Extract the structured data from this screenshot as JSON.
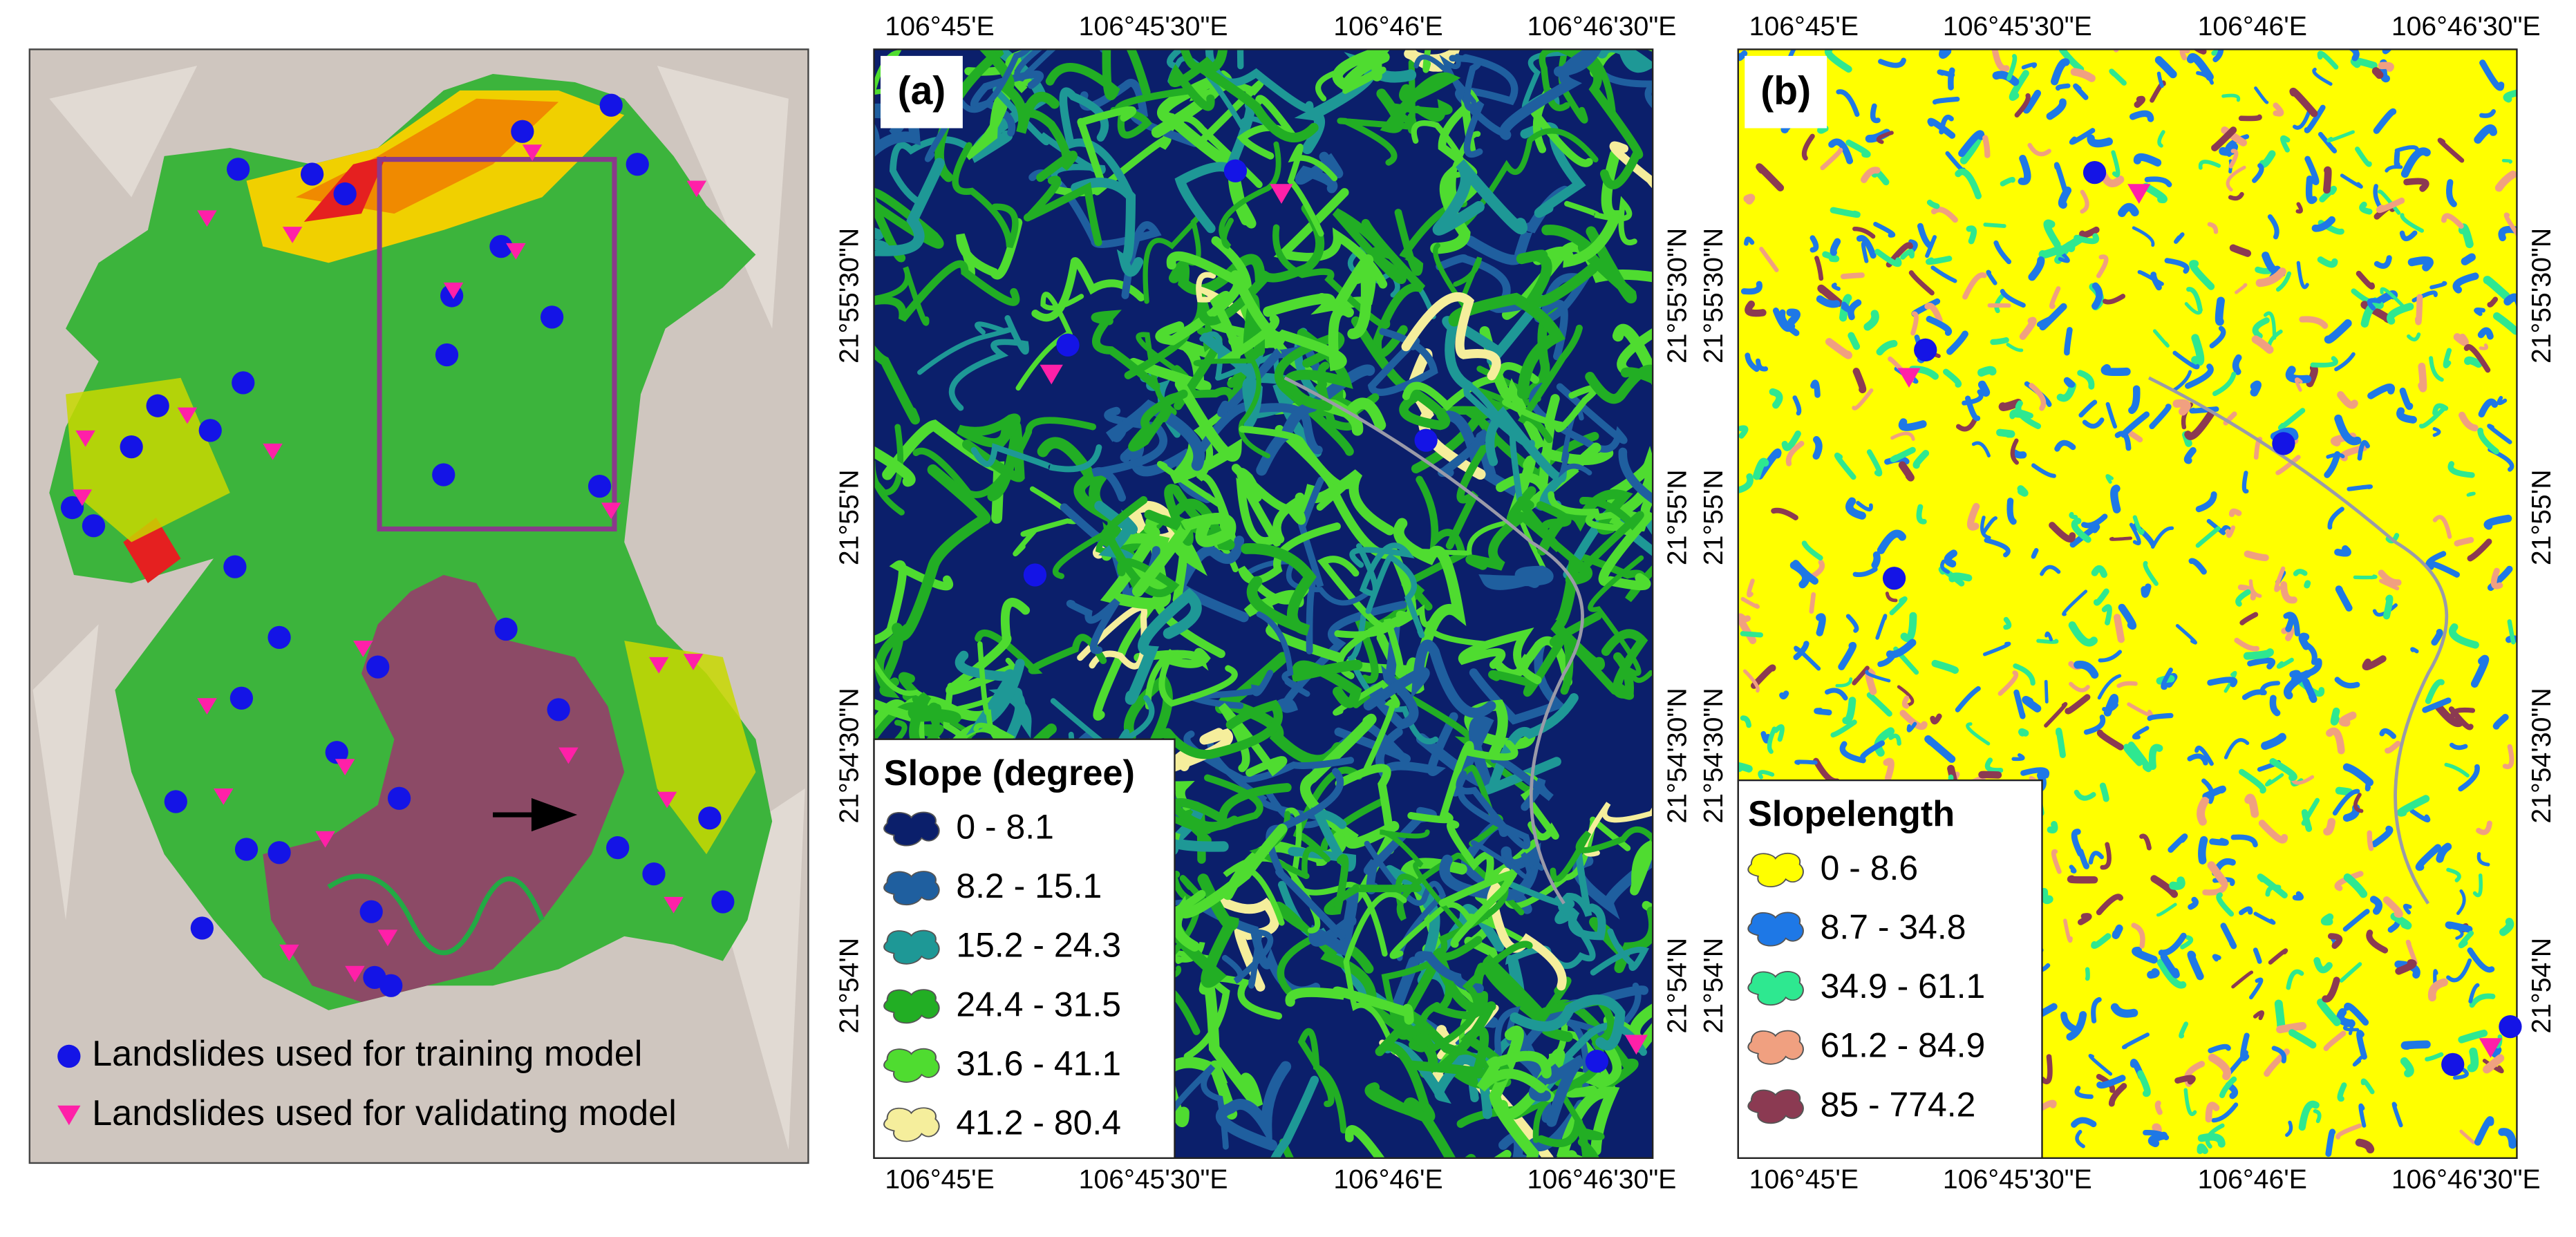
{
  "overview": {
    "legend": [
      "Landslides used for training model",
      "Landslides used for validating model"
    ]
  },
  "longitude_labels": [
    "106°45'E",
    "106°45'30\"E",
    "106°46'E",
    "106°46'30\"E"
  ],
  "latitude_labels": [
    "21°55'30\"N",
    "21°55'N",
    "21°54'30\"N",
    "21°54'N"
  ],
  "panels": [
    {
      "label": "(a)",
      "legend_title": "Slope (degree)",
      "classes": [
        {
          "label": "0 - 8.1",
          "color": "#0b1f6b"
        },
        {
          "label": "8.2 - 15.1",
          "color": "#1f5f9f"
        },
        {
          "label": "15.2 - 24.3",
          "color": "#1e9896"
        },
        {
          "label": "24.4 - 31.5",
          "color": "#22ae24"
        },
        {
          "label": "31.6 - 41.1",
          "color": "#4fdc30"
        },
        {
          "label": "41.2 - 80.4",
          "color": "#f5ee9c"
        }
      ]
    },
    {
      "label": "(b)",
      "legend_title": "Slopelength",
      "classes": [
        {
          "label": "0 - 8.6",
          "color": "#ffff00"
        },
        {
          "label": "8.7 - 34.8",
          "color": "#1e78e6"
        },
        {
          "label": "34.9 - 61.1",
          "color": "#2ee890"
        },
        {
          "label": "61.2 - 84.9",
          "color": "#f0a080"
        },
        {
          "label": "85 - 774.2",
          "color": "#8b3a52"
        }
      ]
    }
  ]
}
